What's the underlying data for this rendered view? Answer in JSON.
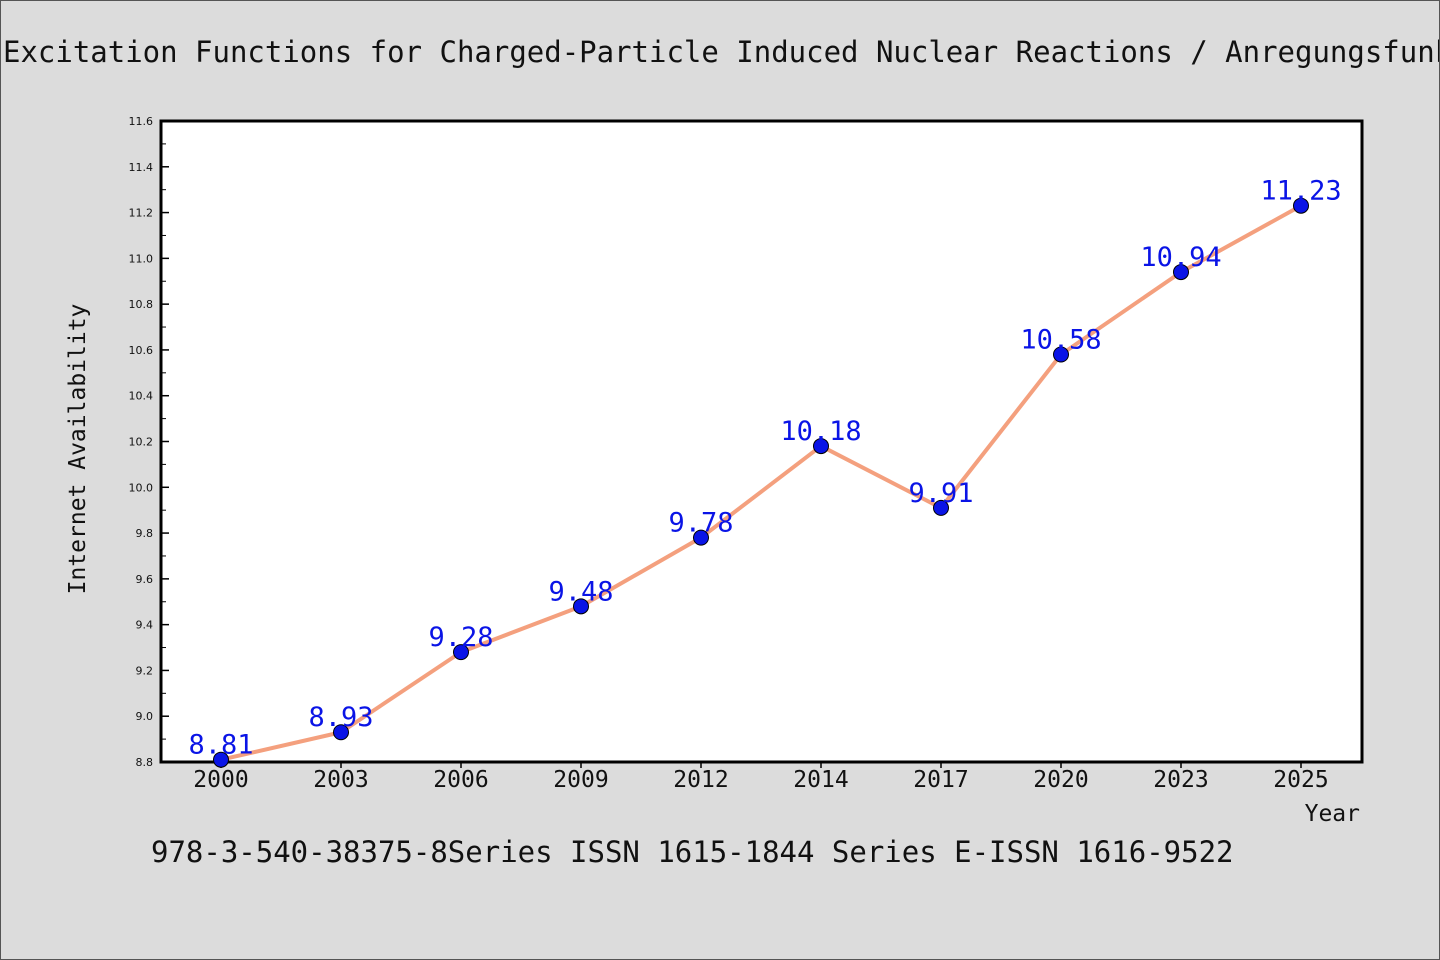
{
  "header": {
    "title": "Excitation Functions for Charged-Particle Induced Nuclear Reactions / Anregungsfunktionen"
  },
  "footer": {
    "text": "978-3-540-38375-8Series ISSN 1615-1844 Series E-ISSN 1616-9522"
  },
  "chart_data": {
    "type": "line",
    "title": "Excitation Functions for Charged-Particle Induced Nuclear Reactions / Anregungsfunktionen",
    "xlabel": "Year",
    "ylabel": "Internet Availability",
    "categories": [
      "2000",
      "2003",
      "2006",
      "2009",
      "2012",
      "2014",
      "2017",
      "2020",
      "2023",
      "2025"
    ],
    "series": [
      {
        "values": [
          8.81,
          8.93,
          9.28,
          9.48,
          9.78,
          10.18,
          9.91,
          10.58,
          10.94,
          11.23
        ],
        "data_labels": [
          "8.81",
          "8.93",
          "9.28",
          "9.48",
          "9.78",
          "10.18",
          "9.91",
          "10.58",
          "10.94",
          "11.23"
        ]
      }
    ],
    "ylim": [
      8.8,
      11.6
    ],
    "yticks": [
      "8.8",
      "9.0",
      "9.2",
      "9.4",
      "9.6",
      "9.8",
      "10.0",
      "10.2",
      "10.4",
      "10.6",
      "10.8",
      "11.0",
      "11.2",
      "11.4",
      "11.6"
    ],
    "grid": false,
    "legend": "none",
    "colors": {
      "line": "#f4a07e",
      "marker": "#0a14e6",
      "data_label": "#0a14e6",
      "background": "#dcdcdc",
      "plot_background": "#ffffff"
    }
  }
}
